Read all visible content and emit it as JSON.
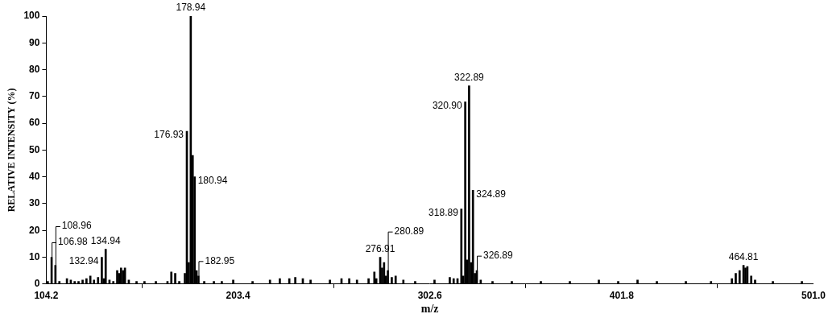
{
  "chart_data": {
    "type": "bar",
    "x_label": "m/z",
    "y_label": "RELATIVE INTENSITY (%)",
    "color": "#000000",
    "grid": false,
    "xlim": [
      104.2,
      501.0
    ],
    "xticks": [
      104.2,
      203.4,
      302.6,
      401.8,
      {
        "value": 501.0,
        "label": "501.0"
      }
    ],
    "ylim": [
      0,
      100
    ],
    "yticks": [
      0,
      10,
      20,
      30,
      40,
      50,
      60,
      70,
      80,
      90,
      100
    ],
    "x": [
      105.0,
      106.98,
      108.96,
      111.0,
      114.9,
      116.9,
      118.9,
      120.9,
      123.0,
      125.0,
      127.0,
      128.9,
      131.0,
      132.94,
      133.9,
      134.94,
      136.9,
      138.9,
      140.9,
      141.9,
      142.9,
      143.9,
      144.9,
      146.9,
      150.9,
      155.0,
      160.9,
      166.9,
      168.9,
      170.9,
      173.0,
      175.9,
      176.93,
      177.93,
      178.94,
      179.94,
      180.94,
      181.95,
      182.95,
      185.9,
      190.9,
      195.0,
      200.9,
      210.9,
      219.9,
      225.0,
      229.9,
      233.0,
      236.9,
      240.9,
      250.9,
      256.9,
      260.9,
      264.9,
      270.9,
      273.9,
      274.9,
      276.91,
      277.9,
      278.91,
      279.9,
      280.89,
      282.9,
      284.9,
      288.9,
      295.0,
      305.0,
      312.9,
      314.9,
      316.9,
      318.89,
      319.9,
      320.9,
      321.9,
      322.89,
      323.9,
      324.89,
      325.9,
      326.89,
      328.9,
      335.0,
      345.0,
      360.0,
      375.0,
      390.0,
      400.0,
      410.0,
      420.0,
      435.0,
      448.0,
      458.8,
      460.8,
      462.8,
      464.81,
      465.8,
      466.8,
      468.8,
      470.8,
      480.0,
      495.0
    ],
    "values": [
      1,
      10,
      7,
      1,
      2,
      1.5,
      1,
      1,
      1.5,
      2,
      3,
      1.5,
      2.5,
      10,
      2,
      13,
      1.5,
      1,
      5,
      4,
      6,
      5,
      6,
      1.5,
      1,
      1,
      1,
      1,
      4.5,
      4,
      1,
      4,
      57,
      8,
      100,
      48,
      40,
      5,
      3,
      1,
      1,
      1,
      1.5,
      1,
      1.5,
      2,
      2,
      2.5,
      2,
      1.5,
      1.5,
      2,
      2,
      1.5,
      2,
      4.5,
      2,
      10,
      6,
      8,
      3,
      5,
      2.5,
      3,
      1.5,
      1,
      1.5,
      2.5,
      2,
      2,
      28,
      3,
      68,
      9,
      74,
      8,
      35,
      4,
      5,
      1.5,
      1,
      1,
      1,
      1,
      1.5,
      1,
      1.5,
      1,
      1,
      1,
      2,
      4,
      5,
      7,
      6,
      6.5,
      3,
      1.5,
      1,
      1
    ],
    "point_labels": [
      null,
      "106.98",
      "108.96",
      null,
      null,
      null,
      null,
      null,
      null,
      null,
      null,
      null,
      null,
      "132.94",
      null,
      "134.94",
      null,
      null,
      null,
      null,
      null,
      null,
      null,
      null,
      null,
      null,
      null,
      null,
      null,
      null,
      null,
      null,
      "176.93",
      null,
      "178.94",
      null,
      "180.94",
      null,
      "182.95",
      null,
      null,
      null,
      null,
      null,
      null,
      null,
      null,
      null,
      null,
      null,
      null,
      null,
      null,
      null,
      null,
      null,
      null,
      "276.91",
      null,
      null,
      null,
      "280.89",
      null,
      null,
      null,
      null,
      null,
      null,
      null,
      null,
      "318.89",
      null,
      "320.90",
      null,
      "322.89",
      null,
      "324.89",
      null,
      "326.89",
      null,
      null,
      null,
      null,
      null,
      null,
      null,
      null,
      null,
      null,
      null,
      null,
      null,
      null,
      "464.81",
      null,
      null,
      null,
      null,
      null,
      null
    ]
  }
}
